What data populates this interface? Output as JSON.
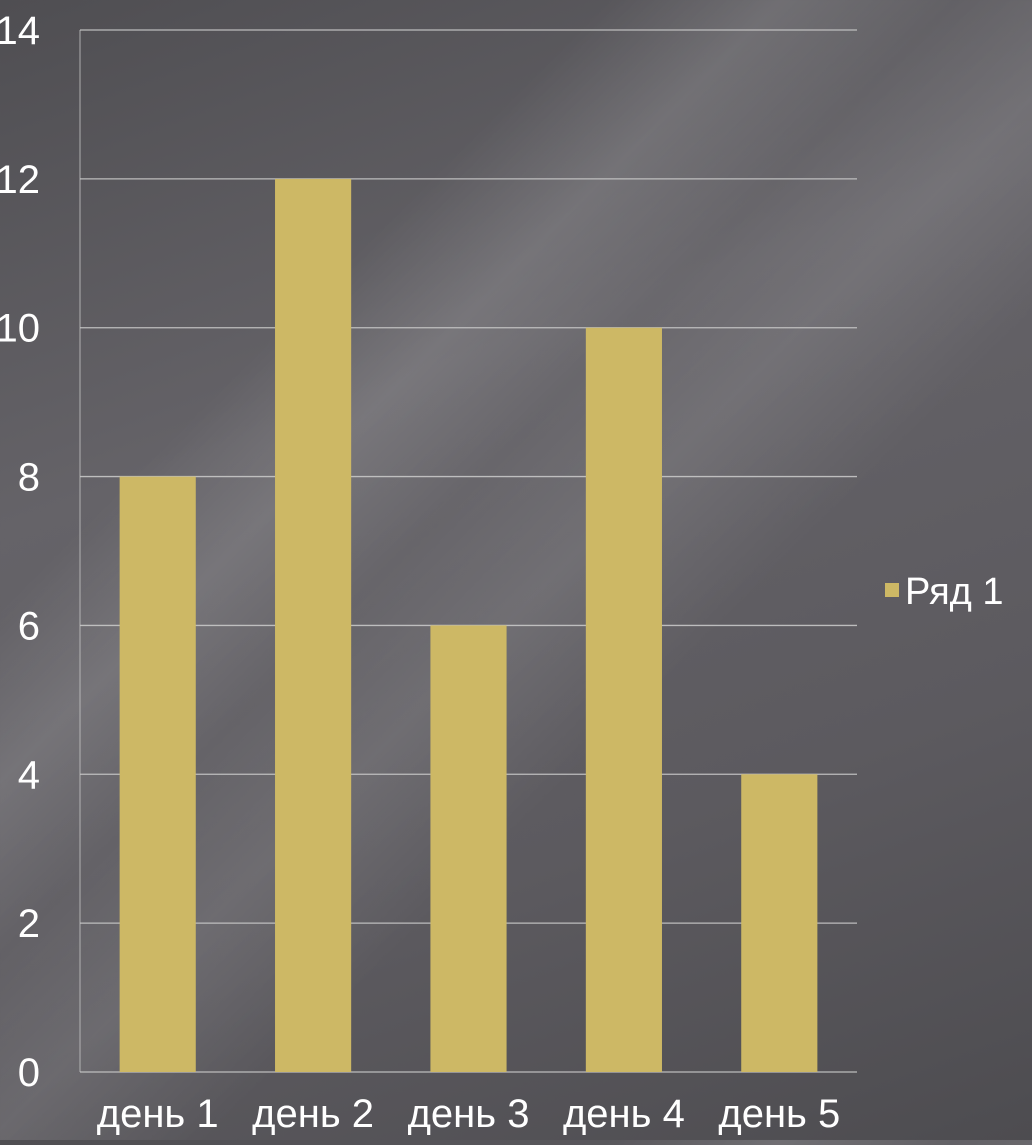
{
  "chart_data": {
    "type": "bar",
    "categories": [
      "день 1",
      "день 2",
      "день 3",
      "день 4",
      "день 5"
    ],
    "series": [
      {
        "name": "Ряд 1",
        "values": [
          8,
          12,
          6,
          10,
          4
        ],
        "color": "#cdb865"
      }
    ],
    "title": "",
    "xlabel": "",
    "ylabel": "",
    "ylim": [
      0,
      14
    ],
    "yticks": [
      0,
      2,
      4,
      6,
      8,
      10,
      12,
      14
    ],
    "grid": true,
    "legend": "right"
  },
  "colors": {
    "gridline": "#c8c8c8",
    "text": "#ffffff"
  }
}
